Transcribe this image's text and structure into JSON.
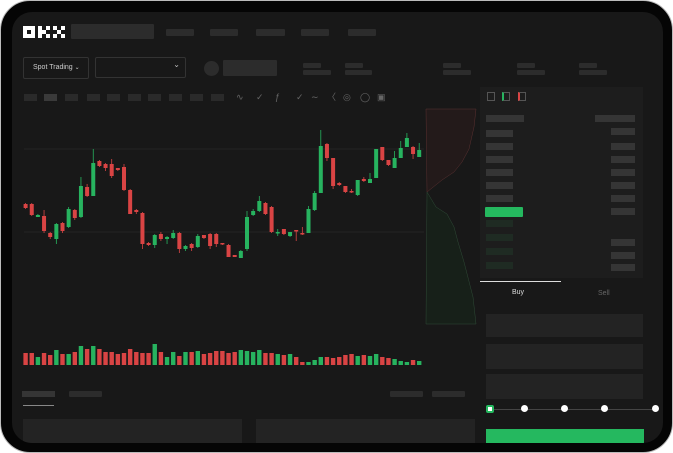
{
  "header": {
    "logo": "OKX"
  },
  "market": {
    "mode_label": "Spot Trading",
    "mode_chevron": "chevron-down-icon",
    "pair_chevron": "chevron-down-icon"
  },
  "toolbar": {
    "icons": [
      "indicator-icon",
      "check-icon",
      "fx-icon",
      "check-icon",
      "line-icon",
      "ruler-icon",
      "camera-icon",
      "settings-icon",
      "fullscreen-icon"
    ]
  },
  "orderbook": {
    "view_icons": [
      "book-both-icon",
      "book-bids-icon",
      "book-asks-icon"
    ]
  },
  "trade": {
    "tabs": [
      {
        "label": "Buy",
        "active": true
      },
      {
        "label": "Sell",
        "active": false
      }
    ],
    "slider_percent": 0
  },
  "colors": {
    "up": "#27b35f",
    "down": "#d94444",
    "background": "#181818",
    "accent": "#25b85f"
  },
  "chart_data": {
    "type": "candlestick",
    "grid": true,
    "candles": [
      [
        67,
        68,
        62,
        63
      ],
      [
        67,
        68,
        55,
        56
      ],
      [
        54,
        57,
        54,
        56
      ],
      [
        55,
        61,
        38,
        40
      ],
      [
        38,
        39,
        32,
        34
      ],
      [
        32,
        48,
        27,
        47
      ],
      [
        48,
        49,
        38,
        40
      ],
      [
        44,
        64,
        43,
        62
      ],
      [
        61,
        62,
        51,
        53
      ],
      [
        54,
        94,
        53,
        85
      ],
      [
        84,
        87,
        74,
        75
      ],
      [
        75,
        122,
        75,
        108
      ],
      [
        110,
        111,
        104,
        105
      ],
      [
        107,
        108,
        100,
        103
      ],
      [
        107,
        112,
        93,
        95
      ],
      [
        103,
        103,
        100,
        101
      ],
      [
        104,
        107,
        80,
        81
      ],
      [
        81,
        82,
        57,
        57
      ],
      [
        61,
        62,
        57,
        59
      ],
      [
        58,
        59,
        22,
        27
      ],
      [
        28,
        29,
        25,
        26
      ],
      [
        26,
        37,
        23,
        36
      ],
      [
        37,
        39,
        30,
        32
      ],
      [
        32,
        35,
        27,
        34
      ],
      [
        33,
        41,
        32,
        38
      ],
      [
        38,
        39,
        18,
        22
      ],
      [
        22,
        26,
        20,
        25
      ],
      [
        27,
        28,
        20,
        23
      ],
      [
        24,
        37,
        23,
        35
      ],
      [
        36,
        36,
        32,
        33
      ],
      [
        37,
        38,
        22,
        25
      ],
      [
        37,
        38,
        24,
        27
      ],
      [
        28,
        28,
        26,
        27
      ],
      [
        26,
        27,
        14,
        14
      ],
      [
        16,
        16,
        14,
        14
      ],
      [
        13,
        21,
        13,
        20
      ],
      [
        22,
        60,
        20,
        54
      ],
      [
        56,
        62,
        55,
        60
      ],
      [
        60,
        75,
        59,
        70
      ],
      [
        68,
        69,
        56,
        57
      ],
      [
        64,
        65,
        38,
        39
      ],
      [
        38,
        42,
        35,
        39
      ],
      [
        42,
        42,
        36,
        37
      ],
      [
        35,
        39,
        34,
        39
      ],
      [
        41,
        41,
        30,
        40
      ],
      [
        38,
        44,
        36,
        37
      ],
      [
        38,
        65,
        38,
        62
      ],
      [
        61,
        80,
        60,
        78
      ],
      [
        78,
        141,
        78,
        125
      ],
      [
        127,
        128,
        110,
        113
      ],
      [
        113,
        113,
        82,
        85
      ],
      [
        88,
        89,
        85,
        86
      ],
      [
        85,
        85,
        78,
        79
      ],
      [
        80,
        82,
        78,
        79
      ],
      [
        76,
        91,
        75,
        91
      ],
      [
        92,
        94,
        89,
        90
      ],
      [
        88,
        98,
        88,
        92
      ],
      [
        93,
        122,
        93,
        122
      ],
      [
        124,
        124,
        110,
        111
      ],
      [
        111,
        111,
        105,
        106
      ],
      [
        103,
        120,
        103,
        113
      ],
      [
        113,
        130,
        113,
        123
      ],
      [
        124,
        138,
        124,
        133
      ],
      [
        124,
        125,
        112,
        117
      ],
      [
        114,
        128,
        114,
        121
      ]
    ],
    "volume": [
      12,
      12,
      8,
      12,
      10,
      15,
      11,
      11,
      13,
      19,
      16,
      19,
      16,
      13,
      13,
      11,
      12,
      16,
      13,
      12,
      12,
      21,
      13,
      8,
      13,
      9,
      13,
      13,
      14,
      11,
      12,
      14,
      14,
      12,
      13,
      15,
      14,
      13,
      15,
      12,
      12,
      11,
      10,
      11,
      8,
      3,
      3,
      5,
      8,
      8,
      7,
      8,
      10,
      11,
      9,
      10,
      9,
      11,
      8,
      7,
      6,
      4,
      3,
      5,
      4
    ]
  }
}
